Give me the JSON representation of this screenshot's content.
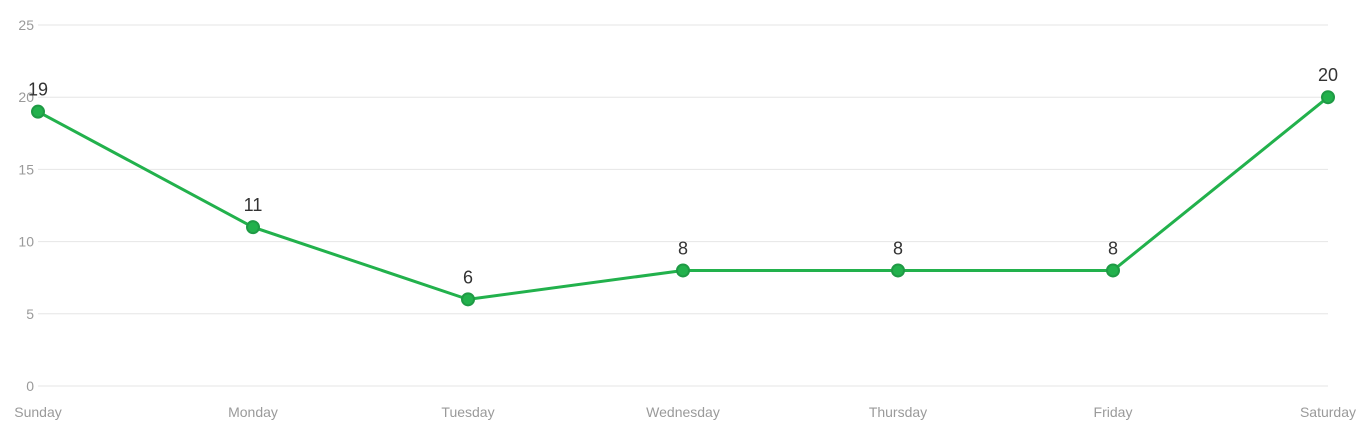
{
  "chart_data": {
    "type": "line",
    "title": "",
    "xlabel": "",
    "ylabel": "",
    "categories": [
      "Sunday",
      "Monday",
      "Tuesday",
      "Wednesday",
      "Thursday",
      "Friday",
      "Saturday"
    ],
    "series": [
      {
        "values": [
          19,
          11,
          6,
          8,
          8,
          8,
          20
        ],
        "color": "#22b14c",
        "marker_color": "#1f9a45"
      }
    ],
    "ylim": [
      0,
      25
    ],
    "yticks": [
      0,
      5,
      10,
      15,
      20,
      25
    ],
    "grid": true,
    "legend": "none",
    "data_labels": true,
    "grid_color": "#e6e6e6",
    "tick_color": "#9a9a9a",
    "label_color": "#333333"
  }
}
